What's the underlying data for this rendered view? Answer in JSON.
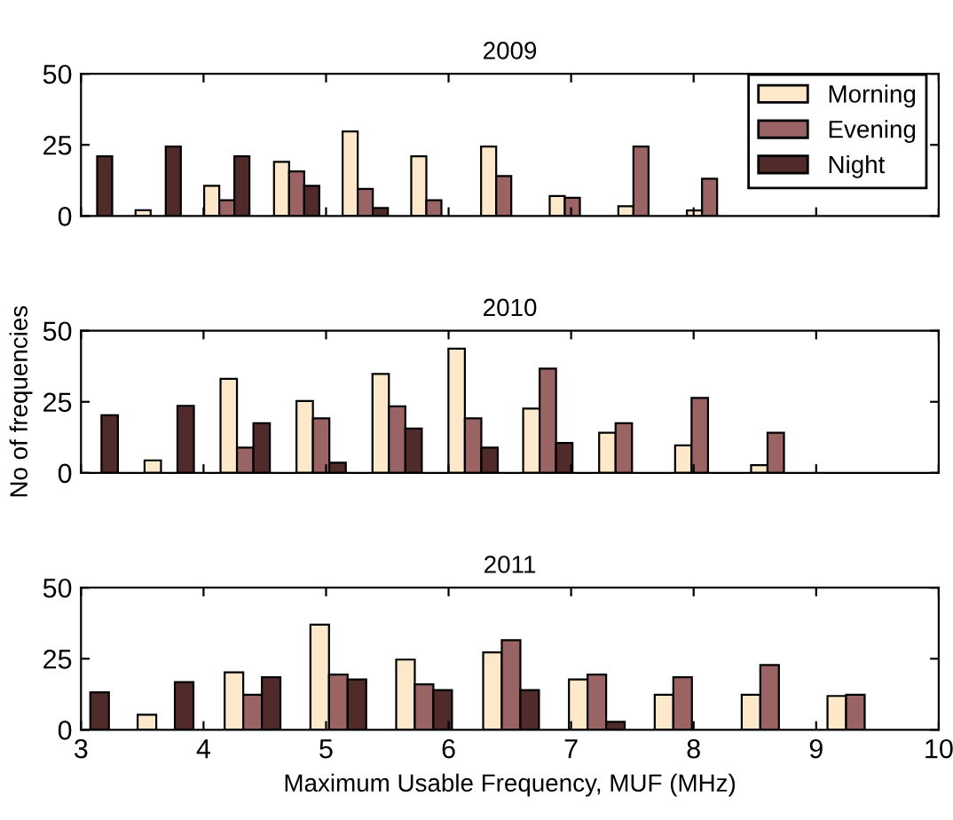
{
  "chart_data": [
    {
      "type": "bar",
      "title": "2009",
      "x": [
        3.07,
        3.63,
        4.19,
        4.76,
        5.32,
        5.88,
        6.45,
        7.01,
        7.57,
        8.13
      ],
      "xlim": [
        3,
        10
      ],
      "xticks": [
        3,
        4,
        5,
        6,
        7,
        8,
        9,
        10
      ],
      "ylim": [
        0,
        50
      ],
      "yticks": [
        0,
        25,
        50
      ],
      "tick_labels": "y",
      "legend": "top right",
      "grid": false,
      "series": [
        {
          "name": "Morning",
          "color": "#fde9c9",
          "values": [
            null,
            2,
            10.6,
            19,
            29.7,
            21,
            24.4,
            7,
            3.4,
            1.9
          ]
        },
        {
          "name": "Evening",
          "color": "#9a6464",
          "values": [
            null,
            null,
            5.5,
            15.7,
            9.5,
            5.5,
            14,
            6.4,
            24.4,
            13.1
          ]
        },
        {
          "name": "Night",
          "color": "#512a2a",
          "values": [
            21,
            24.4,
            21,
            10.6,
            2.8,
            null,
            null,
            null,
            null,
            null
          ]
        }
      ]
    },
    {
      "type": "bar",
      "title": "2010",
      "ylabel": "No of frequencies",
      "x": [
        3.1,
        3.72,
        4.34,
        4.96,
        5.58,
        6.2,
        6.81,
        7.43,
        8.05,
        8.67
      ],
      "xlim": [
        3,
        10
      ],
      "xticks": [
        3,
        4,
        5,
        6,
        7,
        8,
        9,
        10
      ],
      "ylim": [
        0,
        50
      ],
      "yticks": [
        0,
        25,
        50
      ],
      "tick_labels": "y",
      "grid": false,
      "series": [
        {
          "color": "#fde9c9",
          "values": [
            null,
            4.4,
            33.1,
            25.3,
            34.8,
            43.7,
            22.6,
            14.1,
            9.7,
            2.7
          ]
        },
        {
          "color": "#9a6464",
          "values": [
            null,
            null,
            8.9,
            19.2,
            23.4,
            19.2,
            36.7,
            17.5,
            26.4,
            14.1
          ]
        },
        {
          "color": "#512a2a",
          "values": [
            20.3,
            23.6,
            17.5,
            3.6,
            15.6,
            8.9,
            10.5,
            null,
            null,
            null
          ]
        }
      ]
    },
    {
      "type": "bar",
      "title": "2011",
      "xlabel": "Maximum Usable Frequency, MUF (MHz)",
      "x": [
        3.0,
        3.69,
        4.4,
        5.1,
        5.8,
        6.51,
        7.21,
        7.91,
        8.62,
        9.32
      ],
      "xlim": [
        3,
        10
      ],
      "xticks": [
        3,
        4,
        5,
        6,
        7,
        8,
        9,
        10
      ],
      "ylim": [
        0,
        50
      ],
      "yticks": [
        0,
        25,
        50
      ],
      "grid": false,
      "series": [
        {
          "color": "#fde9c9",
          "values": [
            null,
            5.3,
            20.2,
            37,
            24.7,
            27.2,
            17.7,
            12.3,
            12.3,
            11.9
          ]
        },
        {
          "color": "#9a6464",
          "values": [
            null,
            null,
            12.3,
            19.4,
            16,
            31.5,
            19.4,
            18.5,
            22.8,
            12.3
          ]
        },
        {
          "color": "#512a2a",
          "values": [
            13.2,
            16.8,
            18.5,
            17.7,
            14,
            14,
            2.8,
            null,
            null,
            null
          ]
        }
      ]
    }
  ]
}
